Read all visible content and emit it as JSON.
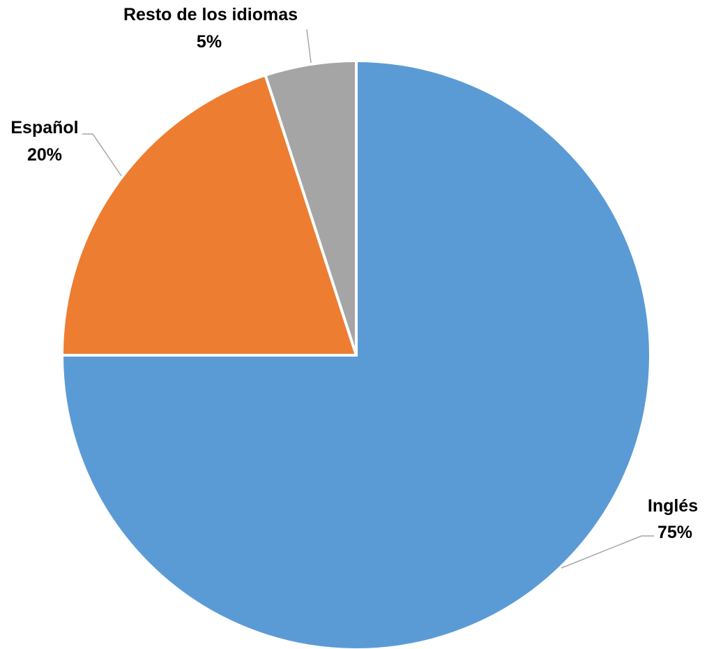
{
  "chart_data": {
    "type": "pie",
    "categories": [
      "Inglés",
      "Español",
      "Resto de los idiomas"
    ],
    "values": [
      75,
      20,
      5
    ],
    "percent_labels": [
      "75%",
      "20%",
      "5%"
    ],
    "colors": [
      "#5b9bd5",
      "#ed7d31",
      "#a5a5a5"
    ],
    "start": "12 o'clock",
    "direction": "clockwise",
    "labels": "outside with leader lines",
    "title": "",
    "legend": "none"
  }
}
